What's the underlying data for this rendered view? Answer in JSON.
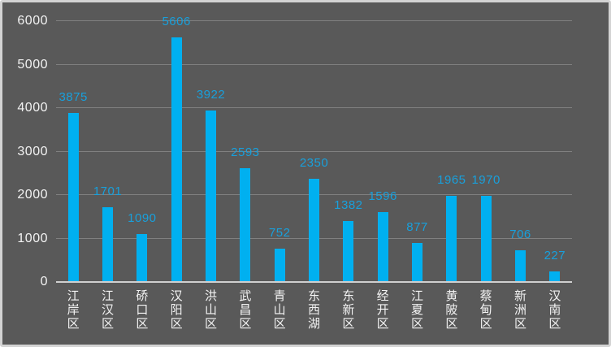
{
  "chart_data": {
    "type": "bar",
    "title": "",
    "categories": [
      "江岸区",
      "江汉区",
      "硚口区",
      "汉阳区",
      "洪山区",
      "武昌区",
      "青山区",
      "东西湖",
      "东新区",
      "经开区",
      "江夏区",
      "黄陂区",
      "蔡甸区",
      "新洲区",
      "汉南区"
    ],
    "values": [
      3875,
      1701,
      1090,
      5606,
      3922,
      2593,
      752,
      2350,
      1382,
      1596,
      877,
      1965,
      1970,
      706,
      227
    ],
    "data_labels_visible": true,
    "xlabel": "",
    "ylabel": "",
    "ylim": [
      0,
      6000
    ],
    "yticks": [
      0,
      1000,
      2000,
      3000,
      4000,
      5000,
      6000
    ],
    "grid": true,
    "legend_position": "none"
  },
  "colors": {
    "background": "#595959",
    "frame_border": "#D3D3D3",
    "bar": "#00B0F0",
    "value_label": "#18A0DC",
    "gridline": "#808080",
    "axis_line": "#CFCFCF",
    "tick_label": "#F2F2F2"
  }
}
